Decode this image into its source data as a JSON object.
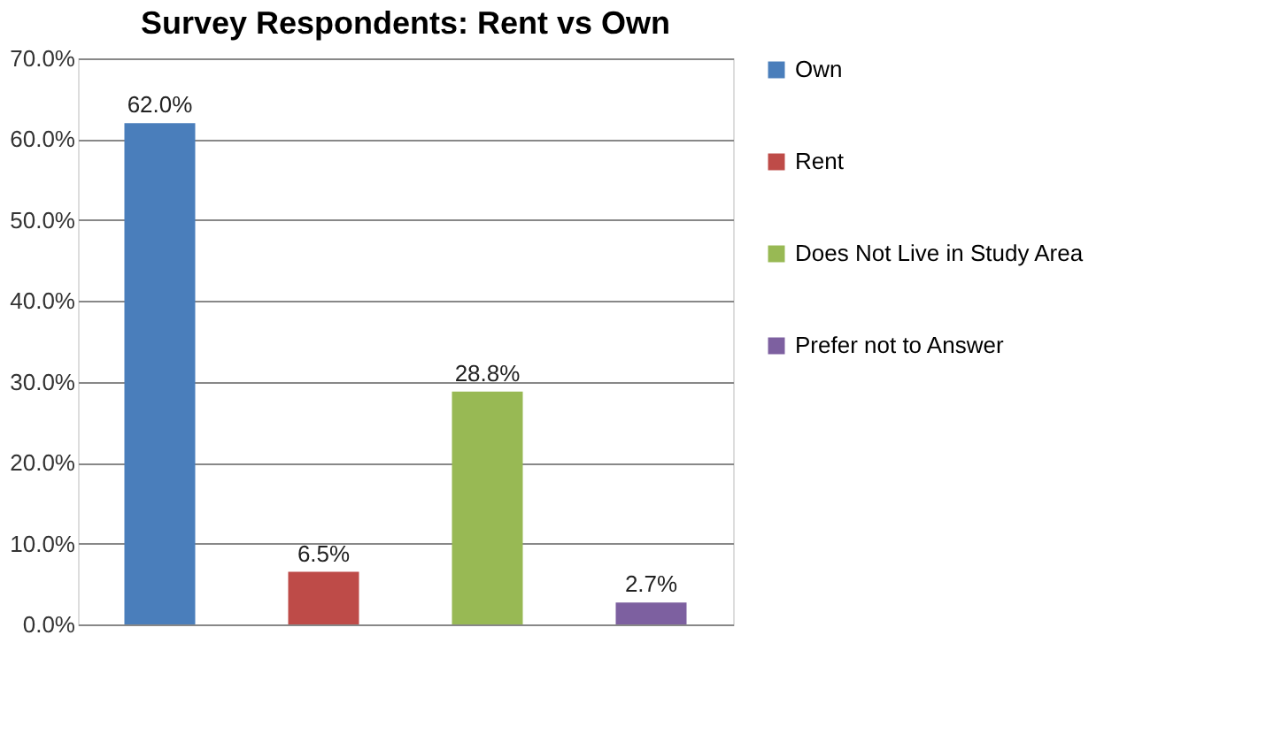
{
  "chart_data": {
    "type": "bar",
    "title": "Survey Respondents: Rent vs Own",
    "categories": [
      null,
      null,
      null,
      null
    ],
    "series": [
      {
        "name": "Own",
        "color": "#4a7ebb",
        "values": [
          62.0,
          null,
          null,
          null
        ],
        "value_labels": [
          "62.0%",
          null,
          null,
          null
        ]
      },
      {
        "name": "Rent",
        "color": "#be4b48",
        "values": [
          null,
          6.5,
          null,
          null
        ],
        "value_labels": [
          null,
          "6.5%",
          null,
          null
        ]
      },
      {
        "name": "Does Not Live in Study Area",
        "color": "#98b954",
        "values": [
          null,
          null,
          28.8,
          null
        ],
        "value_labels": [
          null,
          null,
          "28.8%",
          null
        ]
      },
      {
        "name": "Prefer not to Answer",
        "color": "#7d60a0",
        "values": [
          null,
          null,
          null,
          2.7
        ],
        "value_labels": [
          null,
          null,
          null,
          "2.7%"
        ]
      }
    ],
    "ylim": [
      0,
      70
    ],
    "yticks": [
      {
        "value": 0,
        "label": "0.0%"
      },
      {
        "value": 10,
        "label": "10.0%"
      },
      {
        "value": 20,
        "label": "20.0%"
      },
      {
        "value": 30,
        "label": "30.0%"
      },
      {
        "value": 40,
        "label": "40.0%"
      },
      {
        "value": 50,
        "label": "50.0%"
      },
      {
        "value": 60,
        "label": "60.0%"
      },
      {
        "value": 70,
        "label": "70.0%"
      }
    ],
    "grid": "y",
    "legend": "right"
  }
}
